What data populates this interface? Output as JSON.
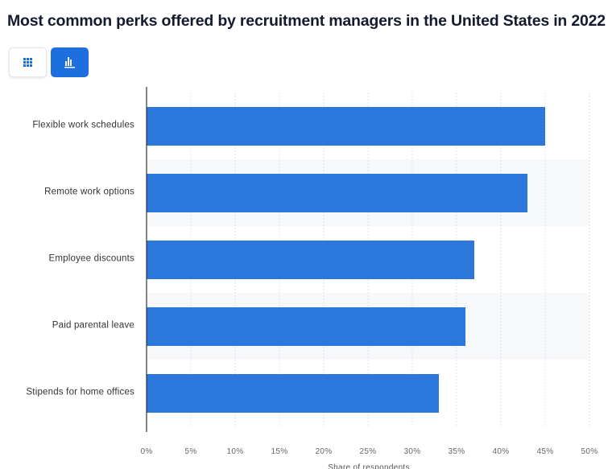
{
  "title": "Most common perks offered by recruitment managers in the United States in 2022",
  "toolbar": {
    "table_icon": "grid-icon",
    "chart_icon": "bar-chart-icon",
    "active": "chart"
  },
  "colors": {
    "bar": "#2c77dc",
    "band": "#f7f8f9",
    "grid": "#dfe2e6",
    "axis": "#333333",
    "active_button": "#1d6fe0"
  },
  "chart_data": {
    "type": "bar",
    "orientation": "horizontal",
    "categories": [
      "Flexible work schedules",
      "Remote work options",
      "Employee discounts",
      "Paid parental leave",
      "Stipends for home offices"
    ],
    "values": [
      45,
      43,
      37,
      36,
      33
    ],
    "xlabel": "Share of respondents",
    "ylabel": "",
    "xlim": [
      0,
      50
    ],
    "ticks": [
      "0%",
      "5%",
      "10%",
      "15%",
      "20%",
      "25%",
      "30%",
      "35%",
      "40%",
      "45%",
      "50%"
    ],
    "grid": true
  }
}
